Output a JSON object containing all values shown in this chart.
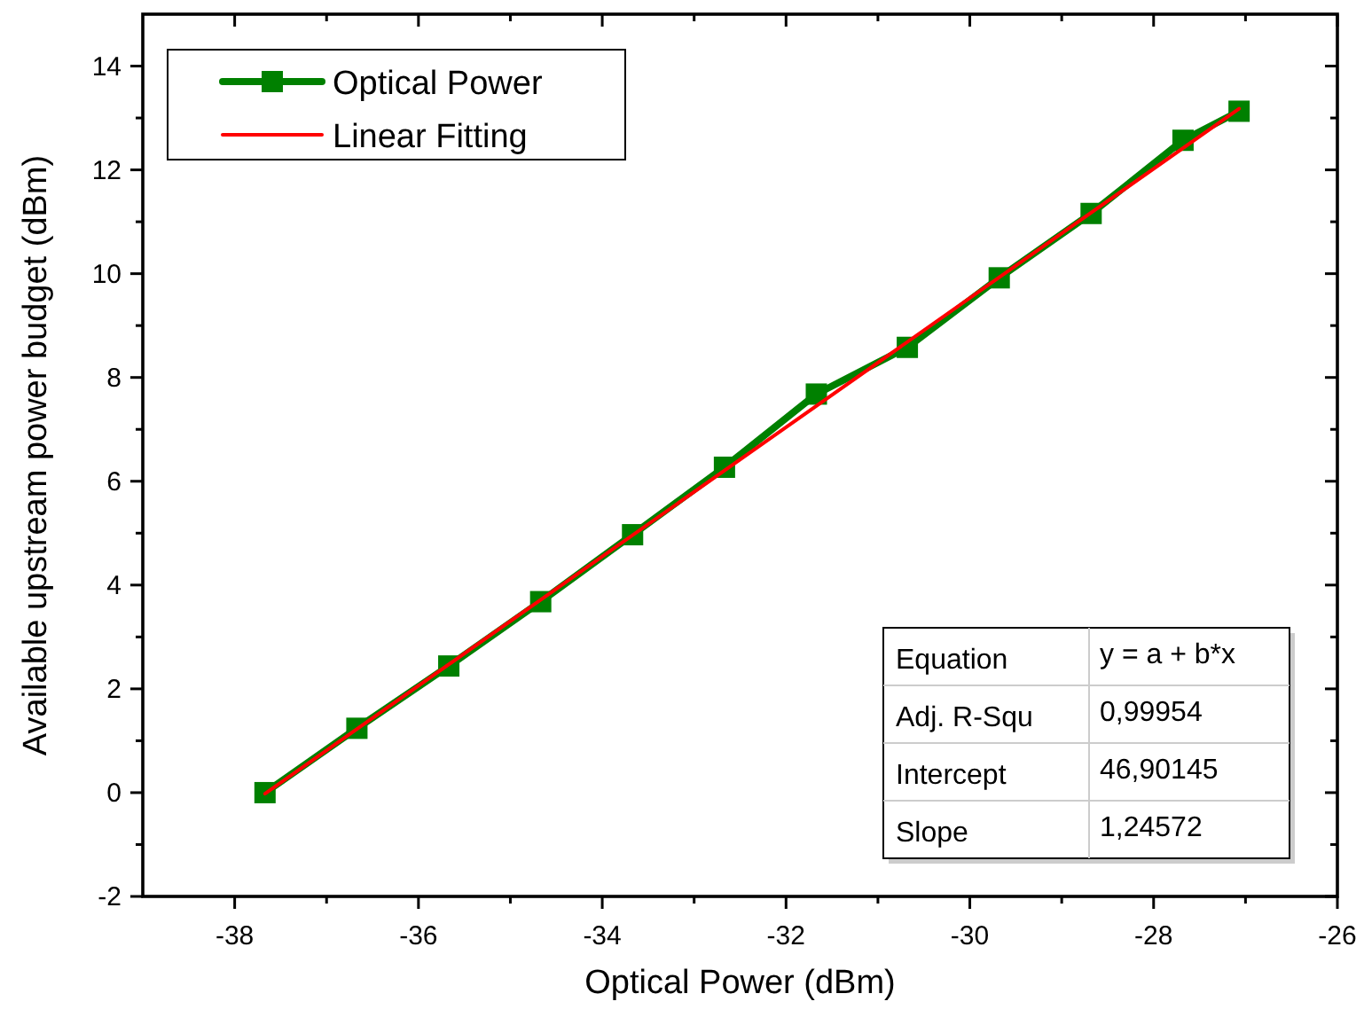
{
  "chart_data": {
    "type": "line",
    "xlabel": "Optical Power (dBm)",
    "ylabel": "Available upstream power budget (dBm)",
    "xlim": [
      -39,
      -26
    ],
    "xticks": [
      -38,
      -36,
      -34,
      -32,
      -30,
      -28,
      -26
    ],
    "ylim": [
      -2,
      15
    ],
    "yticks": [
      -2,
      0,
      2,
      4,
      6,
      8,
      10,
      12,
      14
    ],
    "grid": false,
    "legend": "top left",
    "line_style": "solid",
    "series": [
      {
        "name": "Optical Power",
        "color": "#008000",
        "marker": "square",
        "x": [
          -37.67,
          -36.67,
          -35.67,
          -34.67,
          -33.67,
          -32.67,
          -31.67,
          -30.68,
          -29.68,
          -28.68,
          -27.68,
          -27.07
        ],
        "values": [
          0,
          1.24,
          2.44,
          3.68,
          4.97,
          6.27,
          7.68,
          8.58,
          9.92,
          11.16,
          12.57,
          13.13
        ]
      },
      {
        "name": "Linear Fitting",
        "color": "#ff0000",
        "marker": "none",
        "x": [
          -37.67,
          -27.07
        ],
        "values": [
          -0.02,
          13.18
        ]
      }
    ],
    "annotations": [
      "Equation",
      "y = a + b*x",
      "Adj. R-Squ",
      "0,99954",
      "Intercept",
      "46,90145",
      "Slope",
      "1,24572"
    ]
  }
}
